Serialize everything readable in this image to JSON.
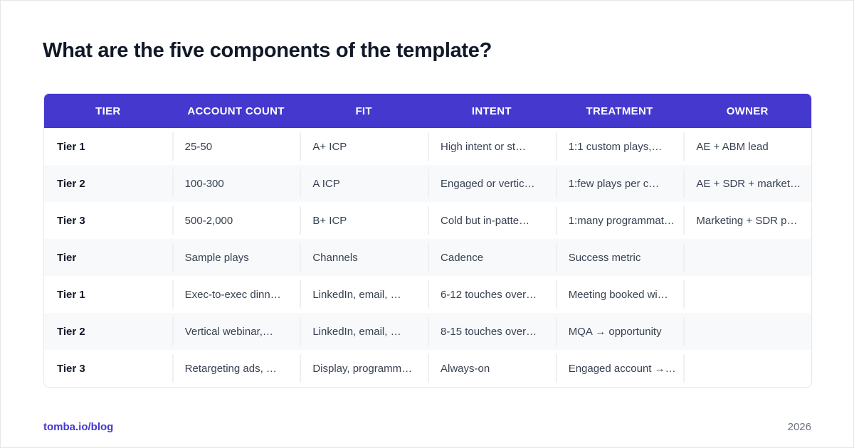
{
  "header": {
    "title": "What are the five components of the template?"
  },
  "table": {
    "columns": [
      "TIER",
      "ACCOUNT COUNT",
      "FIT",
      "INTENT",
      "TREATMENT",
      "OWNER"
    ],
    "rows": [
      [
        "Tier 1",
        "25-50",
        "A+ ICP",
        "High intent or st…",
        "1:1 custom plays,…",
        "AE + ABM lead"
      ],
      [
        "Tier 2",
        "100-300",
        "A ICP",
        "Engaged or vertic…",
        "1:few plays per c…",
        "AE + SDR + market…"
      ],
      [
        "Tier 3",
        "500-2,000",
        "B+ ICP",
        "Cold but in-patte…",
        "1:many programmat…",
        "Marketing + SDR p…"
      ],
      [
        "Tier",
        "Sample plays",
        "Channels",
        "Cadence",
        "Success metric"
      ],
      [
        "Tier 1",
        "Exec-to-exec dinn…",
        "LinkedIn, email, …",
        "6-12 touches over…",
        "Meeting booked wi…"
      ],
      [
        "Tier 2",
        "Vertical webinar,…",
        "LinkedIn, email, …",
        "8-15 touches over…",
        "MQA → opportunity"
      ],
      [
        "Tier 3",
        "Retargeting ads, …",
        "Display, programm…",
        "Always-on",
        "Engaged account →…"
      ]
    ]
  },
  "footer": {
    "source": "tomba.io/blog",
    "year": "2026"
  }
}
